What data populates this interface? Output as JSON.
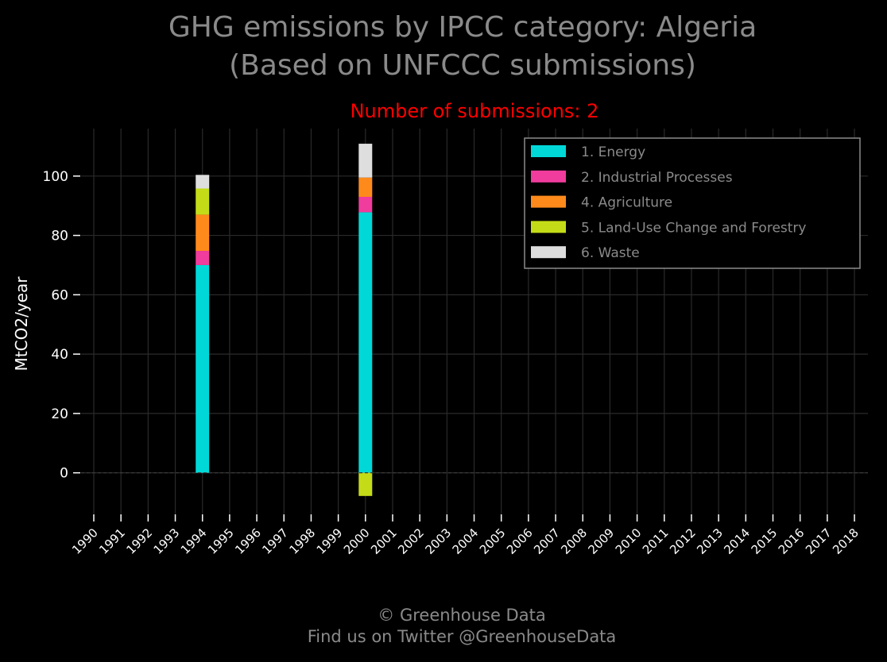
{
  "chart_data": {
    "type": "bar",
    "stacked": true,
    "title": "GHG emissions by IPCC category: Algeria",
    "title_line2": "(Based on UNFCCC submissions)",
    "subtitle": "Number of submissions: 2",
    "xlabel": "",
    "ylabel": "MtCO2/year",
    "ylim": [
      -14,
      116
    ],
    "yticks": [
      0,
      20,
      40,
      60,
      80,
      100
    ],
    "categories": [
      "1990",
      "1991",
      "1992",
      "1993",
      "1994",
      "1995",
      "1996",
      "1997",
      "1998",
      "1999",
      "2000",
      "2001",
      "2002",
      "2003",
      "2004",
      "2005",
      "2006",
      "2007",
      "2008",
      "2009",
      "2010",
      "2011",
      "2012",
      "2013",
      "2014",
      "2015",
      "2016",
      "2017",
      "2018"
    ],
    "grid": true,
    "legend_position": "top-right",
    "series": [
      {
        "name": "1. Energy",
        "color": "#00d8d8",
        "values": {
          "1994": 70,
          "2000": 87.8
        }
      },
      {
        "name": "2. Industrial Processes",
        "color": "#f03c9c",
        "values": {
          "1994": 4.8,
          "2000": 5.2
        }
      },
      {
        "name": "4. Agriculture",
        "color": "#ff8a1c",
        "values": {
          "1994": 12.2,
          "2000": 6.5
        }
      },
      {
        "name": "5. Land-Use Change and Forestry",
        "color": "#c4dc18",
        "values": {
          "1994": 8.8,
          "2000": -7.8
        }
      },
      {
        "name": "6. Waste",
        "color": "#dedede",
        "values": {
          "1994": 4.6,
          "2000": 11.4
        }
      }
    ]
  },
  "footer": {
    "line1": "© Greenhouse Data",
    "line2": "Find us on Twitter @GreenhouseData"
  },
  "colors": {
    "background": "#000000",
    "title": "#8a8a8a",
    "subtitle": "#ff0000",
    "axis_text": "#ffffff",
    "grid": "#2a2a2a"
  }
}
